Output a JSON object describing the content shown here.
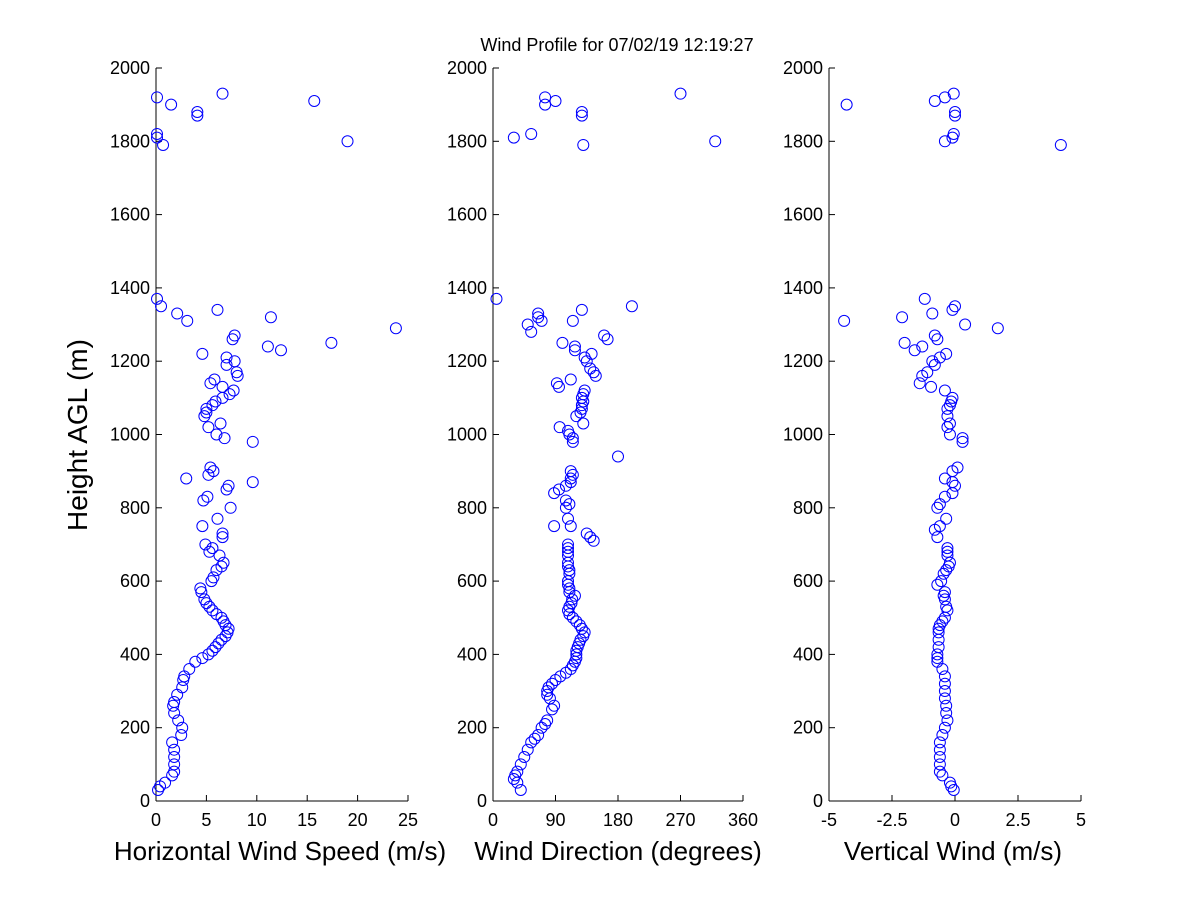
{
  "figure": {
    "title": "Wind Profile for  07/02/19 12:19:27",
    "ylabel": "Height AGL (m)",
    "marker_color": "#0000ff",
    "axis_color": "#000000",
    "background": "#ffffff"
  },
  "chart_data": [
    {
      "type": "scatter",
      "xlabel": "Horizontal Wind Speed (m/s)",
      "ylabel": "Height AGL (m)",
      "xlim": [
        0,
        25
      ],
      "ylim": [
        0,
        2000
      ],
      "xticks": [
        0,
        5,
        10,
        15,
        20,
        25
      ],
      "xtick_labels": [
        "0",
        "5",
        "10",
        "15",
        "20",
        "25"
      ],
      "yticks": [
        0,
        200,
        400,
        600,
        800,
        1000,
        1200,
        1400,
        1600,
        1800,
        2000
      ],
      "ytick_labels": [
        "0",
        "200",
        "400",
        "600",
        "800",
        "1000",
        "1200",
        "1400",
        "1600",
        "1800",
        "2000"
      ],
      "grid": false,
      "points": [
        [
          0.2,
          30
        ],
        [
          0.4,
          40
        ],
        [
          0.9,
          50
        ],
        [
          1.6,
          70
        ],
        [
          1.8,
          80
        ],
        [
          1.8,
          100
        ],
        [
          1.8,
          120
        ],
        [
          1.8,
          140
        ],
        [
          1.6,
          160
        ],
        [
          2.5,
          180
        ],
        [
          2.6,
          200
        ],
        [
          2.2,
          220
        ],
        [
          1.8,
          240
        ],
        [
          1.7,
          260
        ],
        [
          1.8,
          270
        ],
        [
          2.1,
          290
        ],
        [
          2.6,
          310
        ],
        [
          2.7,
          330
        ],
        [
          2.8,
          340
        ],
        [
          3.3,
          360
        ],
        [
          3.9,
          380
        ],
        [
          4.6,
          390
        ],
        [
          5.2,
          400
        ],
        [
          5.6,
          410
        ],
        [
          5.9,
          420
        ],
        [
          6.2,
          430
        ],
        [
          6.5,
          440
        ],
        [
          6.9,
          450
        ],
        [
          7.1,
          460
        ],
        [
          7.2,
          470
        ],
        [
          6.9,
          480
        ],
        [
          6.7,
          490
        ],
        [
          6.5,
          500
        ],
        [
          6.0,
          510
        ],
        [
          5.6,
          520
        ],
        [
          5.3,
          530
        ],
        [
          5.0,
          540
        ],
        [
          4.8,
          550
        ],
        [
          4.5,
          570
        ],
        [
          4.4,
          580
        ],
        [
          5.5,
          600
        ],
        [
          5.7,
          610
        ],
        [
          6.0,
          630
        ],
        [
          6.5,
          640
        ],
        [
          6.7,
          650
        ],
        [
          6.3,
          670
        ],
        [
          5.3,
          680
        ],
        [
          5.6,
          690
        ],
        [
          4.9,
          700
        ],
        [
          6.6,
          720
        ],
        [
          6.6,
          730
        ],
        [
          4.6,
          750
        ],
        [
          6.1,
          770
        ],
        [
          7.4,
          800
        ],
        [
          4.7,
          820
        ],
        [
          5.1,
          830
        ],
        [
          7.0,
          850
        ],
        [
          7.2,
          860
        ],
        [
          9.6,
          870
        ],
        [
          3.0,
          880
        ],
        [
          5.2,
          890
        ],
        [
          5.7,
          900
        ],
        [
          5.4,
          910
        ],
        [
          9.6,
          980
        ],
        [
          6.8,
          990
        ],
        [
          6.0,
          1000
        ],
        [
          5.2,
          1020
        ],
        [
          6.4,
          1030
        ],
        [
          4.8,
          1050
        ],
        [
          5.0,
          1060
        ],
        [
          5.0,
          1070
        ],
        [
          5.6,
          1080
        ],
        [
          5.9,
          1090
        ],
        [
          6.6,
          1100
        ],
        [
          7.3,
          1110
        ],
        [
          7.7,
          1120
        ],
        [
          6.6,
          1130
        ],
        [
          5.4,
          1140
        ],
        [
          5.8,
          1150
        ],
        [
          8.1,
          1160
        ],
        [
          8.0,
          1170
        ],
        [
          7.0,
          1190
        ],
        [
          7.8,
          1200
        ],
        [
          7.0,
          1210
        ],
        [
          4.6,
          1220
        ],
        [
          12.4,
          1230
        ],
        [
          11.1,
          1240
        ],
        [
          17.4,
          1250
        ],
        [
          7.6,
          1260
        ],
        [
          7.8,
          1270
        ],
        [
          23.8,
          1290
        ],
        [
          3.1,
          1310
        ],
        [
          11.4,
          1320
        ],
        [
          2.1,
          1330
        ],
        [
          6.1,
          1340
        ],
        [
          0.5,
          1350
        ],
        [
          0.1,
          1370
        ],
        [
          0.7,
          1790
        ],
        [
          19.0,
          1800
        ],
        [
          0.1,
          1810
        ],
        [
          0.1,
          1820
        ],
        [
          4.1,
          1870
        ],
        [
          4.1,
          1880
        ],
        [
          1.5,
          1900
        ],
        [
          15.7,
          1910
        ],
        [
          0.1,
          1920
        ],
        [
          6.6,
          1930
        ]
      ]
    },
    {
      "type": "scatter",
      "xlabel": "Wind Direction (degrees)",
      "xlim": [
        0,
        360
      ],
      "ylim": [
        0,
        2000
      ],
      "xticks": [
        0,
        90,
        180,
        270,
        360
      ],
      "xtick_labels": [
        "0",
        "90",
        "180",
        "270",
        "360"
      ],
      "yticks": [
        0,
        200,
        400,
        600,
        800,
        1000,
        1200,
        1400,
        1600,
        1800,
        2000
      ],
      "ytick_labels": [
        "0",
        "200",
        "400",
        "600",
        "800",
        "1000",
        "1200",
        "1400",
        "1600",
        "1800",
        "2000"
      ],
      "grid": false,
      "points": [
        [
          40,
          30
        ],
        [
          35,
          50
        ],
        [
          30,
          60
        ],
        [
          32,
          70
        ],
        [
          35,
          80
        ],
        [
          40,
          100
        ],
        [
          45,
          120
        ],
        [
          50,
          140
        ],
        [
          55,
          160
        ],
        [
          60,
          170
        ],
        [
          65,
          180
        ],
        [
          70,
          200
        ],
        [
          75,
          210
        ],
        [
          78,
          220
        ],
        [
          85,
          250
        ],
        [
          88,
          260
        ],
        [
          82,
          280
        ],
        [
          78,
          290
        ],
        [
          78,
          300
        ],
        [
          80,
          310
        ],
        [
          85,
          320
        ],
        [
          90,
          330
        ],
        [
          97,
          340
        ],
        [
          105,
          350
        ],
        [
          112,
          360
        ],
        [
          115,
          370
        ],
        [
          118,
          380
        ],
        [
          120,
          390
        ],
        [
          120,
          400
        ],
        [
          120,
          410
        ],
        [
          122,
          420
        ],
        [
          124,
          430
        ],
        [
          126,
          440
        ],
        [
          130,
          450
        ],
        [
          132,
          460
        ],
        [
          128,
          470
        ],
        [
          125,
          480
        ],
        [
          120,
          490
        ],
        [
          115,
          500
        ],
        [
          110,
          510
        ],
        [
          108,
          520
        ],
        [
          110,
          530
        ],
        [
          113,
          540
        ],
        [
          114,
          550
        ],
        [
          118,
          560
        ],
        [
          110,
          570
        ],
        [
          110,
          580
        ],
        [
          108,
          590
        ],
        [
          108,
          600
        ],
        [
          110,
          620
        ],
        [
          110,
          630
        ],
        [
          108,
          640
        ],
        [
          108,
          650
        ],
        [
          108,
          670
        ],
        [
          108,
          680
        ],
        [
          108,
          690
        ],
        [
          108,
          700
        ],
        [
          145,
          710
        ],
        [
          140,
          720
        ],
        [
          135,
          730
        ],
        [
          112,
          750
        ],
        [
          88,
          750
        ],
        [
          108,
          770
        ],
        [
          105,
          800
        ],
        [
          110,
          810
        ],
        [
          105,
          820
        ],
        [
          88,
          840
        ],
        [
          95,
          850
        ],
        [
          105,
          860
        ],
        [
          112,
          870
        ],
        [
          112,
          880
        ],
        [
          115,
          890
        ],
        [
          112,
          900
        ],
        [
          180,
          940
        ],
        [
          115,
          980
        ],
        [
          115,
          990
        ],
        [
          110,
          1000
        ],
        [
          108,
          1010
        ],
        [
          96,
          1020
        ],
        [
          130,
          1030
        ],
        [
          120,
          1050
        ],
        [
          126,
          1060
        ],
        [
          128,
          1070
        ],
        [
          128,
          1080
        ],
        [
          130,
          1090
        ],
        [
          128,
          1100
        ],
        [
          130,
          1110
        ],
        [
          132,
          1120
        ],
        [
          95,
          1130
        ],
        [
          92,
          1140
        ],
        [
          112,
          1150
        ],
        [
          148,
          1160
        ],
        [
          145,
          1170
        ],
        [
          140,
          1180
        ],
        [
          135,
          1200
        ],
        [
          132,
          1210
        ],
        [
          142,
          1220
        ],
        [
          118,
          1230
        ],
        [
          118,
          1240
        ],
        [
          100,
          1250
        ],
        [
          165,
          1260
        ],
        [
          160,
          1270
        ],
        [
          55,
          1280
        ],
        [
          50,
          1300
        ],
        [
          70,
          1310
        ],
        [
          115,
          1310
        ],
        [
          65,
          1320
        ],
        [
          65,
          1330
        ],
        [
          128,
          1340
        ],
        [
          200,
          1350
        ],
        [
          5,
          1370
        ],
        [
          130,
          1790
        ],
        [
          320,
          1800
        ],
        [
          30,
          1810
        ],
        [
          55,
          1820
        ],
        [
          128,
          1870
        ],
        [
          128,
          1880
        ],
        [
          75,
          1900
        ],
        [
          90,
          1910
        ],
        [
          75,
          1920
        ],
        [
          270,
          1930
        ]
      ]
    },
    {
      "type": "scatter",
      "xlabel": "Vertical Wind (m/s)",
      "xlim": [
        -5,
        5
      ],
      "ylim": [
        0,
        2000
      ],
      "xticks": [
        -5,
        -2.5,
        0,
        2.5,
        5
      ],
      "xtick_labels": [
        "-5",
        "-2.5",
        "0",
        "2.5",
        "5"
      ],
      "yticks": [
        0,
        200,
        400,
        600,
        800,
        1000,
        1200,
        1400,
        1600,
        1800,
        2000
      ],
      "ytick_labels": [
        "0",
        "200",
        "400",
        "600",
        "800",
        "1000",
        "1200",
        "1400",
        "1600",
        "1800",
        "2000"
      ],
      "grid": false,
      "points": [
        [
          -0.05,
          30
        ],
        [
          -0.15,
          40
        ],
        [
          -0.2,
          50
        ],
        [
          -0.5,
          70
        ],
        [
          -0.6,
          80
        ],
        [
          -0.6,
          100
        ],
        [
          -0.6,
          120
        ],
        [
          -0.6,
          140
        ],
        [
          -0.6,
          160
        ],
        [
          -0.5,
          180
        ],
        [
          -0.4,
          200
        ],
        [
          -0.3,
          220
        ],
        [
          -0.35,
          240
        ],
        [
          -0.35,
          260
        ],
        [
          -0.4,
          280
        ],
        [
          -0.4,
          300
        ],
        [
          -0.4,
          320
        ],
        [
          -0.4,
          340
        ],
        [
          -0.5,
          360
        ],
        [
          -0.7,
          380
        ],
        [
          -0.7,
          390
        ],
        [
          -0.7,
          400
        ],
        [
          -0.65,
          420
        ],
        [
          -0.65,
          440
        ],
        [
          -0.65,
          460
        ],
        [
          -0.65,
          470
        ],
        [
          -0.6,
          480
        ],
        [
          -0.5,
          490
        ],
        [
          -0.4,
          500
        ],
        [
          -0.3,
          520
        ],
        [
          -0.35,
          530
        ],
        [
          -0.4,
          550
        ],
        [
          -0.45,
          560
        ],
        [
          -0.4,
          570
        ],
        [
          -0.7,
          590
        ],
        [
          -0.55,
          600
        ],
        [
          -0.45,
          620
        ],
        [
          -0.35,
          630
        ],
        [
          -0.25,
          640
        ],
        [
          -0.2,
          650
        ],
        [
          -0.3,
          670
        ],
        [
          -0.3,
          680
        ],
        [
          -0.3,
          690
        ],
        [
          -0.7,
          720
        ],
        [
          -0.8,
          740
        ],
        [
          -0.6,
          750
        ],
        [
          -0.35,
          770
        ],
        [
          -0.7,
          800
        ],
        [
          -0.6,
          810
        ],
        [
          -0.4,
          830
        ],
        [
          -0.1,
          840
        ],
        [
          0,
          860
        ],
        [
          -0.1,
          870
        ],
        [
          -0.4,
          880
        ],
        [
          -0.1,
          900
        ],
        [
          0.1,
          910
        ],
        [
          0.3,
          980
        ],
        [
          0.3,
          990
        ],
        [
          -0.2,
          1000
        ],
        [
          -0.3,
          1020
        ],
        [
          -0.2,
          1030
        ],
        [
          -0.3,
          1050
        ],
        [
          -0.3,
          1070
        ],
        [
          -0.2,
          1080
        ],
        [
          -0.15,
          1090
        ],
        [
          -0.1,
          1100
        ],
        [
          -0.4,
          1120
        ],
        [
          -0.95,
          1130
        ],
        [
          -1.4,
          1140
        ],
        [
          -1.3,
          1160
        ],
        [
          -1.1,
          1170
        ],
        [
          -0.8,
          1190
        ],
        [
          -0.9,
          1200
        ],
        [
          -0.6,
          1210
        ],
        [
          -0.35,
          1220
        ],
        [
          -1.6,
          1230
        ],
        [
          -1.3,
          1240
        ],
        [
          -2.0,
          1250
        ],
        [
          -0.7,
          1260
        ],
        [
          -0.8,
          1270
        ],
        [
          1.7,
          1290
        ],
        [
          -4.4,
          1310
        ],
        [
          0.4,
          1300
        ],
        [
          -2.1,
          1320
        ],
        [
          -0.9,
          1330
        ],
        [
          -0.1,
          1340
        ],
        [
          0,
          1350
        ],
        [
          -1.2,
          1370
        ],
        [
          4.2,
          1790
        ],
        [
          -0.4,
          1800
        ],
        [
          -0.1,
          1810
        ],
        [
          -0.05,
          1820
        ],
        [
          0,
          1870
        ],
        [
          0,
          1880
        ],
        [
          -4.3,
          1900
        ],
        [
          -0.8,
          1910
        ],
        [
          -0.4,
          1920
        ],
        [
          -0.05,
          1930
        ]
      ]
    }
  ]
}
